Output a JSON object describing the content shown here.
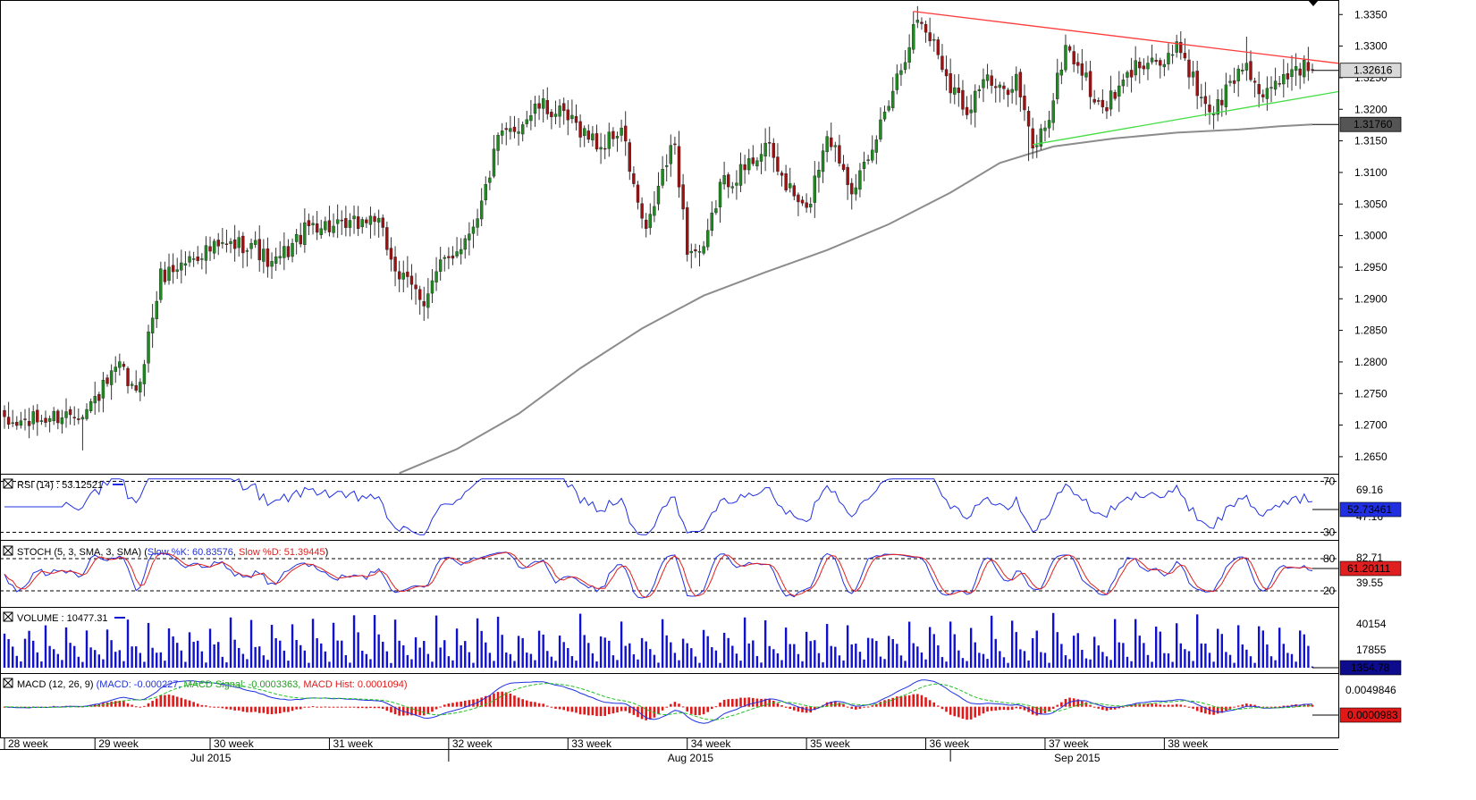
{
  "chart_data": {
    "type": "candlestick",
    "instrument_panels": [
      {
        "name": "price",
        "y_ticks": [
          "1.3350",
          "1.3300",
          "1.3250",
          "1.3200",
          "1.3150",
          "1.3100",
          "1.3050",
          "1.3000",
          "1.2950",
          "1.2900",
          "1.2850",
          "1.2800",
          "1.2750",
          "1.2700",
          "1.2650"
        ],
        "ylim": [
          1.2623,
          1.3373
        ],
        "price_tags": [
          {
            "label": "1.32616",
            "value": 1.32616
          },
          {
            "label": "1.31760",
            "value": 1.3176
          }
        ],
        "trendlines": [
          {
            "name": "resistance",
            "color": "#ff3b3b",
            "from": {
              "bar": 221,
              "value": 1.3355
            },
            "to": {
              "bar": 319,
              "value": 1.3277
            }
          },
          {
            "name": "support",
            "color": "#44dd44",
            "from": {
              "bar": 250,
              "value": 1.3144
            },
            "to": {
              "bar": 319,
              "value": 1.3222
            }
          }
        ],
        "moving_average": {
          "color": "#8c8c8c",
          "points": [
            [
              96,
              1.2624
            ],
            [
              110,
              1.2662
            ],
            [
              125,
              1.2718
            ],
            [
              140,
              1.279
            ],
            [
              155,
              1.2853
            ],
            [
              170,
              1.2905
            ],
            [
              185,
              1.2942
            ],
            [
              200,
              1.2977
            ],
            [
              215,
              1.3018
            ],
            [
              230,
              1.3068
            ],
            [
              242,
              1.3115
            ],
            [
              255,
              1.3141
            ],
            [
              270,
              1.3154
            ],
            [
              285,
              1.3163
            ],
            [
              300,
              1.3168
            ],
            [
              310,
              1.3173
            ],
            [
              318,
              1.3176
            ]
          ]
        },
        "anchors": [
          [
            0,
            1.27
          ],
          [
            10,
            1.271
          ],
          [
            20,
            1.2725
          ],
          [
            28,
            1.279
          ],
          [
            32,
            1.2745
          ],
          [
            38,
            1.2935
          ],
          [
            48,
            1.2975
          ],
          [
            60,
            1.299
          ],
          [
            65,
            1.295
          ],
          [
            75,
            1.302
          ],
          [
            82,
            1.301
          ],
          [
            90,
            1.303
          ],
          [
            96,
            1.2935
          ],
          [
            102,
            1.29
          ],
          [
            106,
            1.295
          ],
          [
            112,
            1.2995
          ],
          [
            116,
            1.305
          ],
          [
            120,
            1.315
          ],
          [
            125,
            1.3175
          ],
          [
            130,
            1.3205
          ],
          [
            134,
            1.3195
          ],
          [
            140,
            1.317
          ],
          [
            145,
            1.314
          ],
          [
            150,
            1.317
          ],
          [
            153,
            1.3075
          ],
          [
            156,
            1.3
          ],
          [
            160,
            1.31
          ],
          [
            163,
            1.3145
          ],
          [
            166,
            1.298
          ],
          [
            170,
            1.297
          ],
          [
            174,
            1.308
          ],
          [
            180,
            1.3105
          ],
          [
            185,
            1.3145
          ],
          [
            190,
            1.308
          ],
          [
            195,
            1.3035
          ],
          [
            200,
            1.3165
          ],
          [
            206,
            1.308
          ],
          [
            210,
            1.311
          ],
          [
            214,
            1.32
          ],
          [
            218,
            1.327
          ],
          [
            222,
            1.3345
          ],
          [
            226,
            1.3305
          ],
          [
            230,
            1.324
          ],
          [
            234,
            1.32
          ],
          [
            238,
            1.325
          ],
          [
            242,
            1.3225
          ],
          [
            246,
            1.325
          ],
          [
            250,
            1.3135
          ],
          [
            254,
            1.319
          ],
          [
            258,
            1.33
          ],
          [
            262,
            1.326
          ],
          [
            266,
            1.32
          ],
          [
            270,
            1.322
          ],
          [
            274,
            1.326
          ],
          [
            278,
            1.3285
          ],
          [
            282,
            1.327
          ],
          [
            286,
            1.33
          ],
          [
            290,
            1.323
          ],
          [
            294,
            1.3195
          ],
          [
            298,
            1.324
          ],
          [
            302,
            1.3275
          ],
          [
            306,
            1.321
          ],
          [
            310,
            1.3245
          ],
          [
            314,
            1.327
          ],
          [
            318,
            1.3262
          ]
        ],
        "bar_count": 319
      },
      {
        "name": "rsi",
        "legend": "RSI (14) : 53.12521",
        "ylim": [
          24,
          76
        ],
        "levels": [
          70,
          30
        ],
        "level_labels": [
          "70",
          "30"
        ],
        "right_ticks": [
          "69.16",
          "47.16"
        ],
        "tag": "52.73461"
      },
      {
        "name": "stoch",
        "legend_prefix": "STOCH (5, 3, SMA, 3, SMA) ",
        "legend_k": "Slow %K: 60.83576",
        "legend_d": "Slow %D: 51.39445",
        "ylim": [
          0,
          100
        ],
        "levels": [
          80,
          20
        ],
        "level_labels": [
          "80",
          "20"
        ],
        "right_ticks": [
          "82.71",
          "39.55"
        ],
        "tag": "61.20111"
      },
      {
        "name": "volume",
        "legend": "VOLUME : 10477.31",
        "ylim": [
          0,
          62000
        ],
        "right_ticks": [
          "40154",
          "17855"
        ],
        "tag": "1354.78"
      },
      {
        "name": "macd",
        "legend_prefix": "MACD (12, 26, 9) ",
        "legend_macd": "(MACD: -0.000227",
        "legend_signal": "MACD Signal: -0.0003363",
        "legend_hist": "MACD Hist: 0.0001094)",
        "ylim": [
          -0.0062,
          0.0068
        ],
        "right_ticks": [
          "0.0049846"
        ],
        "tag": "0.0000983"
      }
    ],
    "x_axis": {
      "week_labels": [
        {
          "label": "28 week",
          "bar": 0
        },
        {
          "label": "29 week",
          "bar": 22
        },
        {
          "label": "30 week",
          "bar": 50
        },
        {
          "label": "31 week",
          "bar": 79
        },
        {
          "label": "32 week",
          "bar": 108
        },
        {
          "label": "33 week",
          "bar": 137
        },
        {
          "label": "34 week",
          "bar": 166
        },
        {
          "label": "35 week",
          "bar": 195
        },
        {
          "label": "36 week",
          "bar": 224
        },
        {
          "label": "37 week",
          "bar": 253
        },
        {
          "label": "38 week",
          "bar": 282
        }
      ],
      "month_labels": [
        {
          "label": "Jul 2015",
          "bar": 50,
          "sep_bar": 108
        },
        {
          "label": "Aug 2015",
          "bar": 166,
          "sep_bar": 230
        },
        {
          "label": "Sep 2015",
          "bar": 260,
          "sep_bar": null
        }
      ]
    }
  }
}
